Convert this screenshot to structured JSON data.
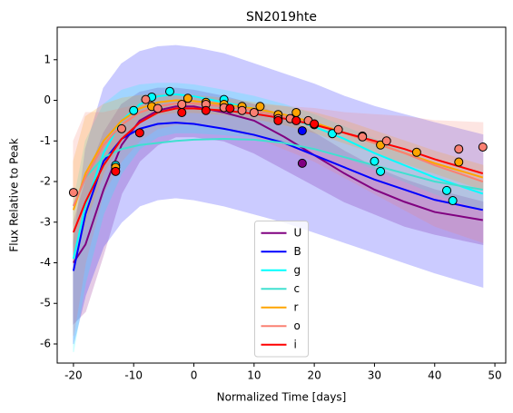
{
  "chart_data": {
    "type": "line",
    "title": "SN2019hte",
    "xlabel": "Normalized Time [days]",
    "ylabel": "Flux Relative to Peak",
    "xlim": [
      -22.7,
      51.8
    ],
    "ylim": [
      -6.47,
      1.8
    ],
    "xticks": [
      -20,
      -10,
      0,
      10,
      20,
      30,
      40,
      50
    ],
    "yticks": [
      -6,
      -5,
      -4,
      -3,
      -2,
      -1,
      0,
      1
    ],
    "legend": "lower center",
    "x": [
      -20,
      -18,
      -15,
      -12,
      -9,
      -6,
      -3,
      0,
      5,
      10,
      15,
      20,
      25,
      30,
      35,
      40,
      48
    ],
    "series": [
      {
        "name": "U",
        "color": "#800080",
        "values": [
          -4.0,
          -3.55,
          -2.2,
          -1.1,
          -0.5,
          -0.25,
          -0.15,
          -0.15,
          -0.3,
          -0.5,
          -0.9,
          -1.35,
          -1.8,
          -2.2,
          -2.5,
          -2.75,
          -2.95
        ],
        "band_upper": [
          -3.0,
          -2.0,
          -0.8,
          -0.1,
          0.2,
          0.3,
          0.3,
          0.25,
          0.1,
          -0.1,
          -0.4,
          -0.8,
          -1.25,
          -1.65,
          -1.95,
          -2.2,
          -2.5
        ],
        "band_lower": [
          -5.5,
          -5.2,
          -3.8,
          -2.3,
          -1.5,
          -1.1,
          -0.9,
          -0.9,
          -1.0,
          -1.3,
          -1.7,
          -2.1,
          -2.5,
          -2.8,
          -3.1,
          -3.3,
          -3.55
        ],
        "points_x": [
          18
        ],
        "points_y": [
          -1.55
        ]
      },
      {
        "name": "B",
        "color": "#0000ff",
        "values": [
          -4.2,
          -2.8,
          -1.5,
          -0.95,
          -0.7,
          -0.58,
          -0.55,
          -0.58,
          -0.7,
          -0.85,
          -1.05,
          -1.35,
          -1.65,
          -1.95,
          -2.2,
          -2.45,
          -2.7
        ],
        "band_upper": [
          -3.5,
          -1.2,
          0.3,
          0.9,
          1.2,
          1.32,
          1.35,
          1.3,
          1.15,
          0.9,
          0.65,
          0.4,
          0.1,
          -0.15,
          -0.35,
          -0.55,
          -0.85
        ],
        "band_lower": [
          -6.0,
          -4.8,
          -3.6,
          -3.0,
          -2.6,
          -2.45,
          -2.4,
          -2.45,
          -2.6,
          -2.8,
          -3.0,
          -3.25,
          -3.5,
          -3.75,
          -4.0,
          -4.25,
          -4.6
        ],
        "points_x": [
          18
        ],
        "points_y": [
          -0.75
        ]
      },
      {
        "name": "g",
        "color": "#00ffff",
        "values": [
          -3.9,
          -2.6,
          -1.3,
          -0.5,
          -0.1,
          0.1,
          0.15,
          0.1,
          -0.05,
          -0.2,
          -0.4,
          -0.65,
          -0.95,
          -1.3,
          -1.6,
          -1.9,
          -2.3
        ],
        "band_upper": [
          -2.5,
          -1.0,
          -0.1,
          0.25,
          0.38,
          0.42,
          0.42,
          0.38,
          0.25,
          0.1,
          -0.1,
          -0.35,
          -0.65,
          -0.95,
          -1.25,
          -1.55,
          -2.0
        ],
        "band_lower": [
          -6.2,
          -4.5,
          -2.8,
          -1.8,
          -1.2,
          -0.9,
          -0.8,
          -0.8,
          -0.85,
          -0.9,
          -1.0,
          -1.2,
          -1.4,
          -1.7,
          -2.0,
          -2.3,
          -2.7
        ],
        "points_x": [
          -13,
          -10,
          -7,
          -4,
          5,
          23,
          30,
          31,
          42,
          43
        ],
        "points_y": [
          -1.6,
          -0.25,
          0.08,
          0.22,
          0.02,
          -0.82,
          -1.5,
          -1.75,
          -2.22,
          -2.47
        ]
      },
      {
        "name": "c",
        "color": "#40e0d0",
        "values": [
          -2.6,
          -1.9,
          -1.4,
          -1.2,
          -1.1,
          -1.05,
          -1.0,
          -0.97,
          -0.95,
          -0.97,
          -1.05,
          -1.2,
          -1.4,
          -1.6,
          -1.8,
          -2.0,
          -2.2
        ]
      },
      {
        "name": "r",
        "color": "#ffa500",
        "values": [
          -2.7,
          -1.8,
          -1.0,
          -0.5,
          -0.2,
          -0.05,
          0.0,
          -0.02,
          -0.1,
          -0.2,
          -0.35,
          -0.55,
          -0.8,
          -1.05,
          -1.3,
          -1.55,
          -1.9
        ],
        "band_upper": [
          -1.5,
          -0.4,
          -0.1,
          0.05,
          0.12,
          0.15,
          0.15,
          0.12,
          0.05,
          -0.05,
          -0.15,
          -0.3,
          -0.5,
          -0.75,
          -1.0,
          -1.25,
          -1.6
        ],
        "band_lower": [
          -4.0,
          -3.0,
          -1.8,
          -1.0,
          -0.55,
          -0.35,
          -0.3,
          -0.3,
          -0.35,
          -0.45,
          -0.6,
          -0.8,
          -1.05,
          -1.3,
          -1.55,
          -1.8,
          -2.2
        ],
        "points_x": [
          -13,
          -7,
          -1,
          2,
          5,
          8,
          11,
          14,
          17,
          28,
          31,
          37,
          44
        ],
        "points_y": [
          -1.65,
          -0.15,
          0.05,
          -0.05,
          -0.1,
          -0.15,
          -0.15,
          -0.35,
          -0.3,
          -0.88,
          -1.1,
          -1.28,
          -1.52
        ]
      },
      {
        "name": "o",
        "color": "#fa8072",
        "values": [
          -2.6,
          -1.9,
          -1.1,
          -0.6,
          -0.3,
          -0.15,
          -0.08,
          -0.08,
          -0.15,
          -0.25,
          -0.4,
          -0.6,
          -0.8,
          -1.05,
          -1.3,
          -1.6,
          -2.0
        ],
        "band_upper": [
          -1.0,
          -0.3,
          -0.3,
          -0.2,
          -0.1,
          -0.05,
          0.0,
          0.0,
          -0.05,
          -0.1,
          -0.15,
          -0.2,
          -0.3,
          -0.35,
          -0.4,
          -0.5,
          -0.55
        ],
        "band_lower": [
          -5.8,
          -4.0,
          -2.3,
          -1.5,
          -1.0,
          -0.7,
          -0.6,
          -0.6,
          -0.7,
          -0.9,
          -1.2,
          -1.5,
          -1.9,
          -2.3,
          -2.7,
          -3.1,
          -3.5
        ],
        "points_x": [
          -20,
          -12,
          -8,
          -6,
          -2,
          2,
          5,
          8,
          10,
          14,
          16,
          19,
          20,
          24,
          28,
          32,
          44,
          48
        ],
        "points_y": [
          -2.27,
          -0.7,
          0.02,
          -0.2,
          -0.1,
          -0.1,
          -0.18,
          -0.25,
          -0.3,
          -0.45,
          -0.45,
          -0.5,
          -0.6,
          -0.72,
          -0.9,
          -1.0,
          -1.2,
          -1.15
        ]
      },
      {
        "name": "i",
        "color": "#ff0000",
        "values": [
          -3.25,
          -2.5,
          -1.6,
          -0.95,
          -0.55,
          -0.3,
          -0.2,
          -0.2,
          -0.25,
          -0.33,
          -0.45,
          -0.6,
          -0.8,
          -1.0,
          -1.2,
          -1.45,
          -1.8
        ],
        "points_x": [
          -13,
          -9,
          -2,
          2,
          6,
          14,
          17,
          20
        ],
        "points_y": [
          -1.75,
          -0.8,
          -0.3,
          -0.25,
          -0.2,
          -0.5,
          -0.5,
          -0.58
        ]
      }
    ]
  }
}
